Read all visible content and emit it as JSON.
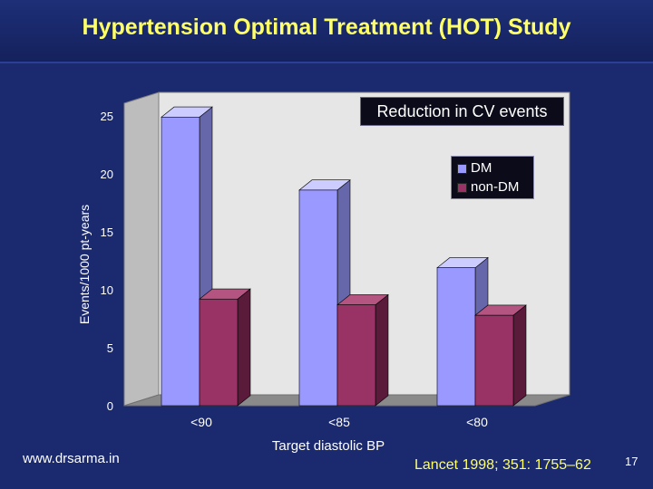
{
  "slide": {
    "title": "Hypertension Optimal Treatment (HOT) Study",
    "source": "www.drsarma.in",
    "citation": "Lancet 1998; 351: 1755–62",
    "slide_number": "17"
  },
  "annotation": {
    "text": "Reduction in CV events"
  },
  "colors": {
    "background": "#1b2a6e",
    "title": "#ffff66",
    "dm": "#9999ff",
    "non_dm": "#993366"
  },
  "chart_data": {
    "type": "bar",
    "title": "Reduction in CV events",
    "categories": [
      "<90",
      "<85",
      "<80"
    ],
    "series": [
      {
        "name": "DM",
        "values": [
          24.9,
          18.6,
          11.9
        ]
      },
      {
        "name": "non-DM",
        "values": [
          9.2,
          8.7,
          7.8
        ]
      }
    ],
    "xlabel": "Target diastolic BP",
    "ylabel": "Events/1000 pt-years",
    "ylim": [
      0,
      25
    ],
    "yticks": [
      "0",
      "5",
      "10",
      "15",
      "20",
      "25"
    ],
    "grid": false,
    "legend": "top-right",
    "style": "3d-clustered"
  }
}
